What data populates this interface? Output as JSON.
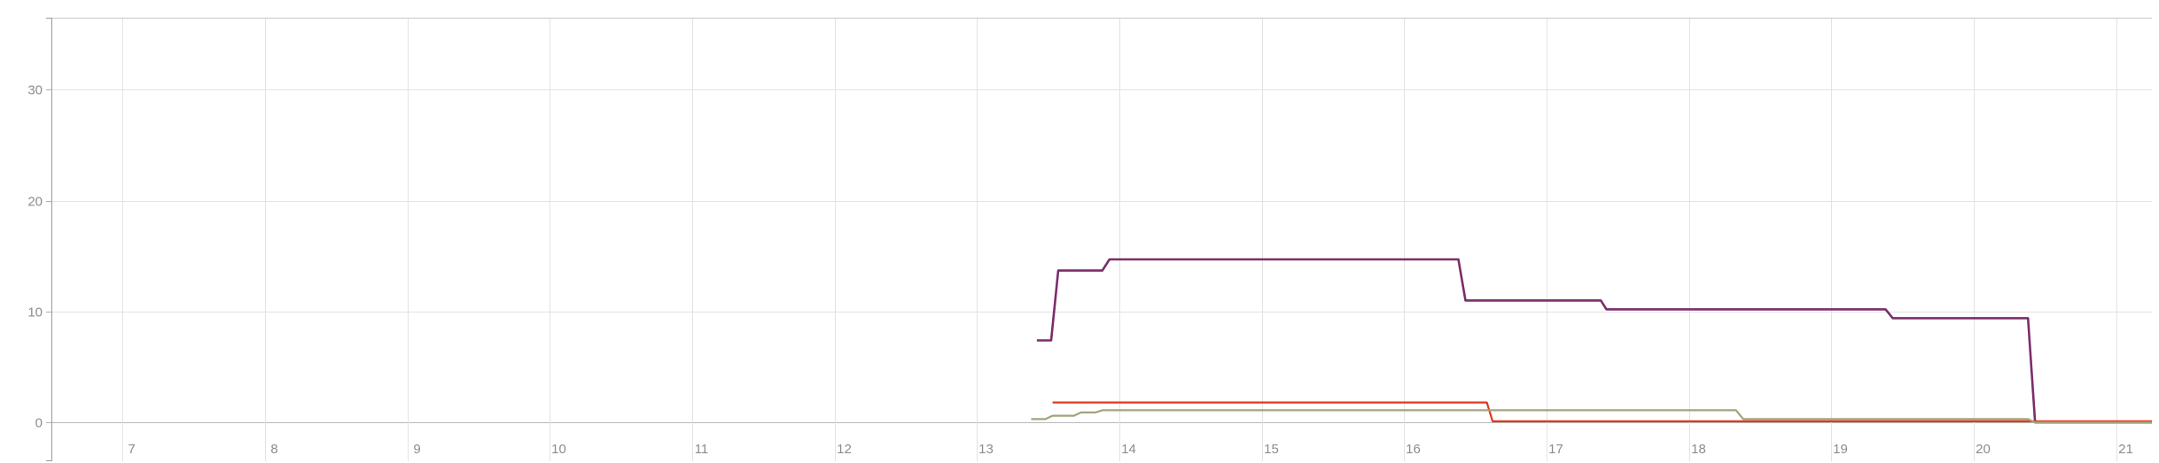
{
  "chart_data": {
    "type": "line",
    "title": "",
    "xlabel": "",
    "ylabel": "",
    "xlim": [
      6.5,
      21.25
    ],
    "ylim": [
      -3.5,
      36.5
    ],
    "x_ticks": [
      7,
      8,
      9,
      10,
      11,
      12,
      13,
      14,
      15,
      16,
      17,
      18,
      19,
      20,
      21
    ],
    "x_tick_labels": [
      "7",
      "8",
      "9",
      "10",
      "11",
      "12",
      "13",
      "14",
      "15",
      "16",
      "17",
      "18",
      "19",
      "20",
      "21"
    ],
    "y_ticks": [
      0,
      10,
      20,
      30
    ],
    "y_tick_labels": [
      "0",
      "10",
      "20",
      "30"
    ],
    "grid": true,
    "legend": "none",
    "series": [
      {
        "color": "#7b2d6b",
        "x": [
          13.42,
          13.52,
          13.57,
          13.88,
          13.93,
          16.38,
          16.43,
          17.38,
          17.42,
          19.38,
          19.43,
          20.38,
          20.43,
          21.25
        ],
        "y": [
          7.4,
          7.4,
          13.7,
          13.7,
          14.7,
          14.7,
          11.0,
          11.0,
          10.2,
          10.2,
          9.4,
          9.4,
          0.0,
          0.0
        ]
      },
      {
        "color": "#e2391c",
        "x": [
          13.53,
          16.58,
          16.62,
          21.25
        ],
        "y": [
          1.8,
          1.8,
          0.1,
          0.1
        ]
      },
      {
        "color": "#a3a37e",
        "x": [
          13.38,
          13.48,
          13.53,
          13.68,
          13.73,
          13.83,
          13.88,
          18.33,
          18.38,
          20.38,
          20.43,
          21.25
        ],
        "y": [
          0.3,
          0.3,
          0.6,
          0.6,
          0.9,
          0.9,
          1.1,
          1.1,
          0.3,
          0.3,
          0.0,
          0.0
        ]
      }
    ]
  }
}
